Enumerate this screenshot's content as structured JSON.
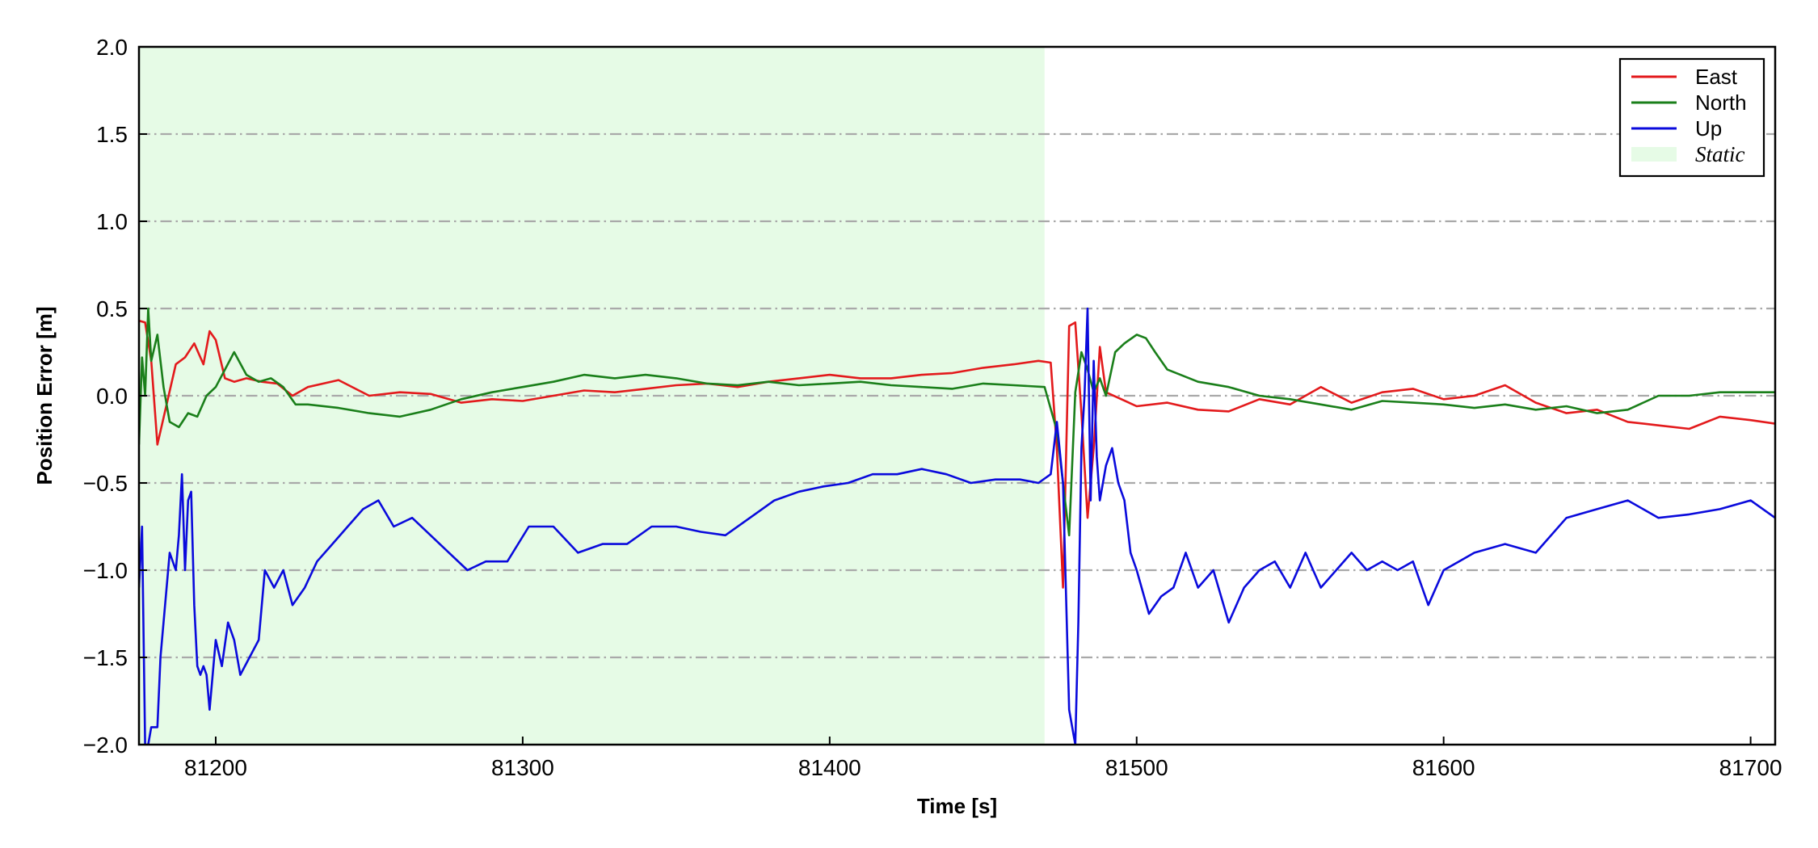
{
  "chart_data": {
    "type": "line",
    "xlabel": "Time [s]",
    "ylabel": "Position Error [m]",
    "xlim": [
      81175,
      81708
    ],
    "ylim": [
      -2.0,
      2.0
    ],
    "xticks": [
      81200,
      81300,
      81400,
      81500,
      81600,
      81700
    ],
    "xtick_labels": [
      "81200",
      "81300",
      "81400",
      "81500",
      "81600",
      "81700"
    ],
    "yticks": [
      -2.0,
      -1.5,
      -1.0,
      -0.5,
      0.0,
      0.5,
      1.0,
      1.5,
      2.0
    ],
    "ytick_labels": [
      "−2.0",
      "−1.5",
      "−1.0",
      "−0.5",
      "0.0",
      "0.5",
      "1.0",
      "1.5",
      "2.0"
    ],
    "grid": "horizontal dash-dot",
    "legend_position": "top-right",
    "static_region": {
      "label": "Static",
      "x_start": 81175,
      "x_end": 81470,
      "color": "#e6fbe6"
    },
    "series": [
      {
        "name": "East",
        "color": "#e31a1c",
        "x": [
          81175,
          81177,
          81179,
          81181,
          81184,
          81187,
          81190,
          81193,
          81196,
          81198,
          81200,
          81203,
          81206,
          81210,
          81215,
          81220,
          81225,
          81230,
          81240,
          81250,
          81260,
          81270,
          81280,
          81290,
          81300,
          81310,
          81320,
          81330,
          81340,
          81350,
          81360,
          81370,
          81380,
          81390,
          81400,
          81410,
          81420,
          81430,
          81440,
          81450,
          81460,
          81468,
          81472,
          81474,
          81476,
          81478,
          81480,
          81482,
          81484,
          81486,
          81488,
          81490,
          81495,
          81500,
          81510,
          81520,
          81530,
          81540,
          81550,
          81560,
          81570,
          81580,
          81590,
          81600,
          81610,
          81620,
          81630,
          81640,
          81650,
          81660,
          81670,
          81680,
          81690,
          81700,
          81708
        ],
        "values": [
          0.43,
          0.42,
          0.2,
          -0.28,
          -0.05,
          0.18,
          0.22,
          0.3,
          0.18,
          0.37,
          0.32,
          0.1,
          0.08,
          0.1,
          0.08,
          0.07,
          0.0,
          0.05,
          0.09,
          0.0,
          0.02,
          0.01,
          -0.04,
          -0.02,
          -0.03,
          0.0,
          0.03,
          0.02,
          0.04,
          0.06,
          0.07,
          0.05,
          0.08,
          0.1,
          0.12,
          0.1,
          0.1,
          0.12,
          0.13,
          0.16,
          0.18,
          0.2,
          0.19,
          -0.3,
          -1.1,
          0.4,
          0.42,
          -0.1,
          -0.7,
          -0.3,
          0.28,
          0.02,
          -0.02,
          -0.06,
          -0.04,
          -0.08,
          -0.09,
          -0.02,
          -0.05,
          0.05,
          -0.04,
          0.02,
          0.04,
          -0.02,
          0.0,
          0.06,
          -0.04,
          -0.1,
          -0.08,
          -0.15,
          -0.17,
          -0.19,
          -0.12,
          -0.14,
          -0.16
        ]
      },
      {
        "name": "North",
        "color": "#1a7f1a",
        "x": [
          81175,
          81176,
          81177,
          81178,
          81179,
          81181,
          81183,
          81185,
          81188,
          81191,
          81194,
          81197,
          81200,
          81203,
          81206,
          81210,
          81214,
          81218,
          81222,
          81226,
          81230,
          81240,
          81250,
          81260,
          81270,
          81280,
          81290,
          81300,
          81310,
          81320,
          81330,
          81340,
          81350,
          81360,
          81370,
          81380,
          81390,
          81400,
          81410,
          81420,
          81430,
          81440,
          81450,
          81460,
          81470,
          81474,
          81476,
          81478,
          81480,
          81482,
          81484,
          81486,
          81488,
          81490,
          81493,
          81496,
          81500,
          81503,
          81506,
          81510,
          81520,
          81530,
          81540,
          81550,
          81560,
          81570,
          81580,
          81590,
          81600,
          81610,
          81620,
          81630,
          81640,
          81650,
          81660,
          81670,
          81680,
          81690,
          81700,
          81708
        ],
        "values": [
          -0.28,
          0.22,
          0.0,
          0.5,
          0.2,
          0.35,
          0.05,
          -0.15,
          -0.18,
          -0.1,
          -0.12,
          0.0,
          0.05,
          0.15,
          0.25,
          0.12,
          0.08,
          0.1,
          0.05,
          -0.05,
          -0.05,
          -0.07,
          -0.1,
          -0.12,
          -0.08,
          -0.02,
          0.02,
          0.05,
          0.08,
          0.12,
          0.1,
          0.12,
          0.1,
          0.07,
          0.06,
          0.08,
          0.06,
          0.07,
          0.08,
          0.06,
          0.05,
          0.04,
          0.07,
          0.06,
          0.05,
          -0.2,
          -0.5,
          -0.8,
          0.02,
          0.25,
          0.15,
          0.02,
          0.1,
          0.0,
          0.25,
          0.3,
          0.35,
          0.33,
          0.25,
          0.15,
          0.08,
          0.05,
          0.0,
          -0.02,
          -0.05,
          -0.08,
          -0.03,
          -0.04,
          -0.05,
          -0.07,
          -0.05,
          -0.08,
          -0.06,
          -0.1,
          -0.08,
          0.0,
          0.0,
          0.02,
          0.02,
          0.02
        ]
      },
      {
        "name": "Up",
        "color": "#0a0adc",
        "x": [
          81175,
          81176,
          81177,
          81178,
          81179,
          81180,
          81181,
          81182,
          81183,
          81185,
          81187,
          81188,
          81189,
          81190,
          81191,
          81192,
          81193,
          81194,
          81195,
          81196,
          81197,
          81198,
          81200,
          81202,
          81204,
          81206,
          81208,
          81211,
          81214,
          81216,
          81219,
          81222,
          81225,
          81229,
          81233,
          81238,
          81243,
          81248,
          81253,
          81258,
          81264,
          81270,
          81276,
          81282,
          81288,
          81295,
          81302,
          81310,
          81318,
          81326,
          81334,
          81342,
          81350,
          81358,
          81366,
          81374,
          81382,
          81390,
          81398,
          81406,
          81414,
          81422,
          81430,
          81438,
          81446,
          81454,
          81462,
          81468,
          81472,
          81474,
          81476,
          81478,
          81480,
          81481,
          81482,
          81483,
          81484,
          81485,
          81486,
          81487,
          81488,
          81489,
          81490,
          81492,
          81494,
          81496,
          81498,
          81500,
          81504,
          81508,
          81512,
          81516,
          81520,
          81525,
          81530,
          81535,
          81540,
          81545,
          81550,
          81555,
          81560,
          81565,
          81570,
          81575,
          81580,
          81585,
          81590,
          81595,
          81600,
          81605,
          81610,
          81620,
          81630,
          81640,
          81650,
          81660,
          81670,
          81680,
          81690,
          81700,
          81708
        ],
        "values": [
          -1.1,
          -0.75,
          -2.0,
          -2.0,
          -1.9,
          -1.9,
          -1.9,
          -1.5,
          -1.3,
          -0.9,
          -1.0,
          -0.8,
          -0.45,
          -1.0,
          -0.6,
          -0.55,
          -1.2,
          -1.55,
          -1.6,
          -1.55,
          -1.6,
          -1.8,
          -1.4,
          -1.55,
          -1.3,
          -1.4,
          -1.6,
          -1.5,
          -1.4,
          -1.0,
          -1.1,
          -1.0,
          -1.2,
          -1.1,
          -0.95,
          -0.85,
          -0.75,
          -0.65,
          -0.6,
          -0.75,
          -0.7,
          -0.8,
          -0.9,
          -1.0,
          -0.95,
          -0.95,
          -0.75,
          -0.75,
          -0.9,
          -0.85,
          -0.85,
          -0.75,
          -0.75,
          -0.78,
          -0.8,
          -0.7,
          -0.6,
          -0.55,
          -0.52,
          -0.5,
          -0.45,
          -0.45,
          -0.42,
          -0.45,
          -0.5,
          -0.48,
          -0.48,
          -0.5,
          -0.45,
          -0.15,
          -0.5,
          -1.8,
          -2.0,
          -1.3,
          -0.3,
          0.0,
          0.5,
          -0.6,
          0.2,
          -0.35,
          -0.6,
          -0.5,
          -0.4,
          -0.3,
          -0.5,
          -0.6,
          -0.9,
          -1.0,
          -1.25,
          -1.15,
          -1.1,
          -0.9,
          -1.1,
          -1.0,
          -1.3,
          -1.1,
          -1.0,
          -0.95,
          -1.1,
          -0.9,
          -1.1,
          -1.0,
          -0.9,
          -1.0,
          -0.95,
          -1.0,
          -0.95,
          -1.2,
          -1.0,
          -0.95,
          -0.9,
          -0.85,
          -0.9,
          -0.7,
          -0.65,
          -0.6,
          -0.7,
          -0.68,
          -0.65,
          -0.6,
          -0.7
        ]
      }
    ]
  }
}
